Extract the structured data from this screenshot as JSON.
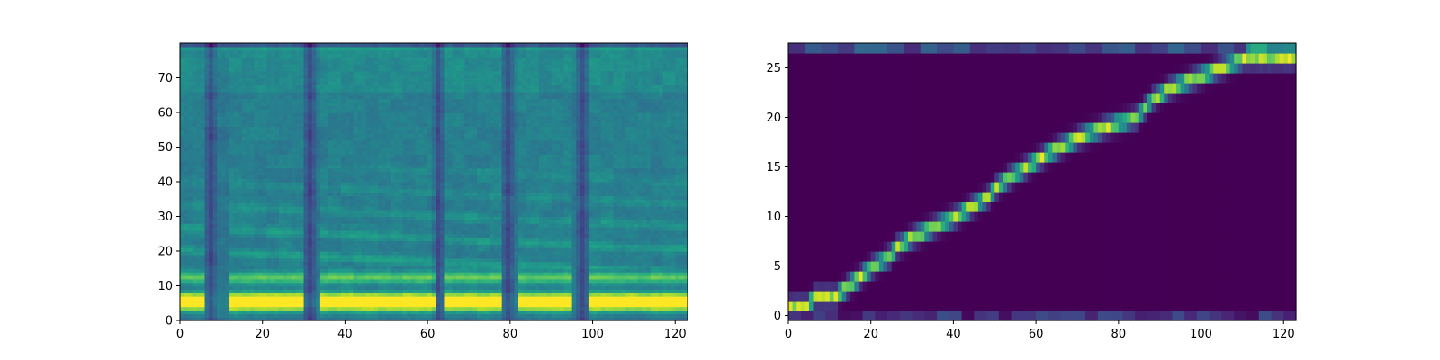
{
  "chart_data": [
    {
      "type": "heatmap",
      "title": "",
      "xlabel": "",
      "ylabel": "",
      "colormap": "viridis",
      "xlim": [
        0,
        123
      ],
      "ylim": [
        0,
        80
      ],
      "xticks": [
        "0",
        "20",
        "40",
        "60",
        "80",
        "100",
        "120"
      ],
      "yticks": [
        "0",
        "10",
        "20",
        "30",
        "40",
        "50",
        "60",
        "70"
      ],
      "n_frames": 123,
      "n_bins": 80,
      "loud_segments": [
        [
          0,
          5
        ],
        [
          12,
          29
        ],
        [
          34,
          61
        ],
        [
          64,
          77
        ],
        [
          82,
          94
        ],
        [
          99,
          123
        ]
      ],
      "silent_frames": [
        7,
        31,
        62,
        79,
        97
      ],
      "bright_bands": [
        4,
        6,
        12
      ]
    },
    {
      "type": "heatmap",
      "title": "",
      "xlabel": "",
      "ylabel": "",
      "colormap": "viridis",
      "xlim": [
        0,
        123
      ],
      "ylim": [
        -0.5,
        27.5
      ],
      "xticks": [
        "0",
        "20",
        "40",
        "60",
        "80",
        "100",
        "120"
      ],
      "yticks": [
        "0",
        "5",
        "10",
        "15",
        "20",
        "25"
      ],
      "n_decoder_steps": 123,
      "n_encoder_steps": 28,
      "alignment_path": [
        [
          0,
          1
        ],
        [
          4,
          1
        ],
        [
          6,
          2
        ],
        [
          11,
          2
        ],
        [
          14,
          3
        ],
        [
          17,
          4
        ],
        [
          20,
          5
        ],
        [
          24,
          6
        ],
        [
          26,
          7
        ],
        [
          30,
          8
        ],
        [
          35,
          9
        ],
        [
          40,
          10
        ],
        [
          44,
          11
        ],
        [
          48,
          12
        ],
        [
          50,
          13
        ],
        [
          53,
          14
        ],
        [
          57,
          15
        ],
        [
          61,
          16
        ],
        [
          65,
          17
        ],
        [
          70,
          18
        ],
        [
          76,
          19
        ],
        [
          84,
          20
        ],
        [
          86,
          21
        ],
        [
          88,
          22
        ],
        [
          92,
          23
        ],
        [
          98,
          24
        ],
        [
          104,
          25
        ],
        [
          110,
          26
        ],
        [
          122,
          26
        ]
      ]
    }
  ]
}
